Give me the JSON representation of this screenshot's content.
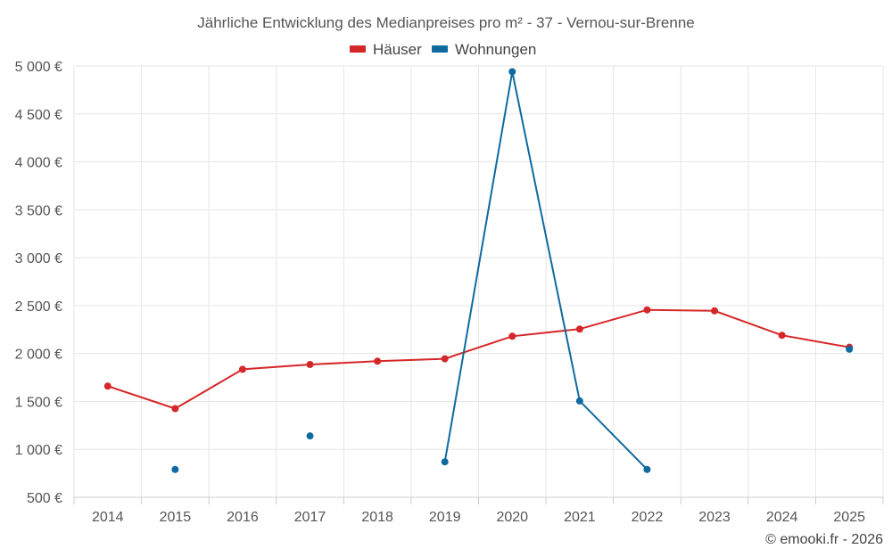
{
  "chart_data": {
    "type": "line",
    "title": "Jährliche Entwicklung des Medianpreises pro m² - 37 - Vernou-sur-Brenne",
    "credit": "© emooki.fr - 2026",
    "x": [
      "2014",
      "2015",
      "2016",
      "2017",
      "2018",
      "2019",
      "2020",
      "2021",
      "2022",
      "2023",
      "2024",
      "2025"
    ],
    "ylim": [
      500,
      5000
    ],
    "yticks": [
      500,
      1000,
      1500,
      2000,
      2500,
      3000,
      3500,
      4000,
      4500,
      5000
    ],
    "ytick_labels": [
      "500 €",
      "1 000 €",
      "1 500 €",
      "2 000 €",
      "2 500 €",
      "3 000 €",
      "3 500 €",
      "4 000 €",
      "4 500 €",
      "5 000 €"
    ],
    "grid": true,
    "legend_position": "top-center",
    "series": [
      {
        "name": "Häuser",
        "color": "#d62728",
        "values": [
          1660,
          1425,
          1835,
          1885,
          1920,
          1945,
          2180,
          2255,
          2455,
          2445,
          2190,
          2065
        ]
      },
      {
        "name": "Wohnungen",
        "color": "#0f6aa0",
        "values": [
          null,
          790,
          null,
          1140,
          null,
          870,
          4940,
          1505,
          790,
          null,
          null,
          2045
        ]
      }
    ]
  }
}
